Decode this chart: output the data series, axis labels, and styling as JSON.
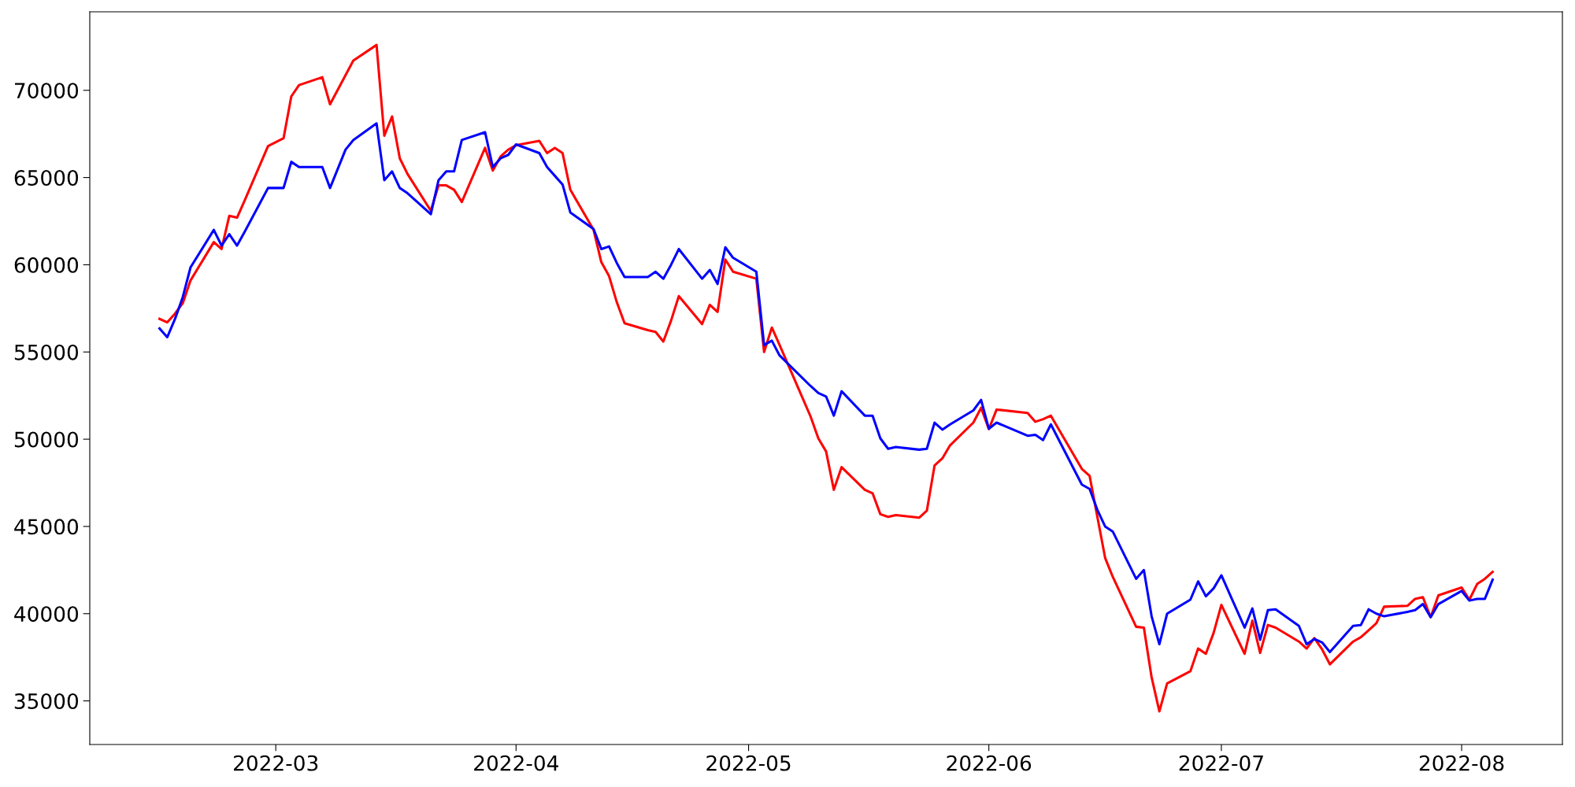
{
  "chart_data": {
    "type": "line",
    "x": [
      "2022-02-14",
      "2022-02-15",
      "2022-02-16",
      "2022-02-17",
      "2022-02-18",
      "2022-02-21",
      "2022-02-22",
      "2022-02-23",
      "2022-02-24",
      "2022-02-25",
      "2022-02-28",
      "2022-03-02",
      "2022-03-03",
      "2022-03-04",
      "2022-03-07",
      "2022-03-08",
      "2022-03-10",
      "2022-03-11",
      "2022-03-14",
      "2022-03-15",
      "2022-03-16",
      "2022-03-17",
      "2022-03-18",
      "2022-03-21",
      "2022-03-22",
      "2022-03-23",
      "2022-03-24",
      "2022-03-25",
      "2022-03-28",
      "2022-03-29",
      "2022-03-30",
      "2022-03-31",
      "2022-04-01",
      "2022-04-04",
      "2022-04-05",
      "2022-04-06",
      "2022-04-07",
      "2022-04-08",
      "2022-04-11",
      "2022-04-12",
      "2022-04-13",
      "2022-04-14",
      "2022-04-15",
      "2022-04-18",
      "2022-04-19",
      "2022-04-20",
      "2022-04-21",
      "2022-04-22",
      "2022-04-25",
      "2022-04-26",
      "2022-04-27",
      "2022-04-28",
      "2022-04-29",
      "2022-05-02",
      "2022-05-03",
      "2022-05-04",
      "2022-05-05",
      "2022-05-09",
      "2022-05-10",
      "2022-05-11",
      "2022-05-12",
      "2022-05-13",
      "2022-05-16",
      "2022-05-17",
      "2022-05-18",
      "2022-05-19",
      "2022-05-20",
      "2022-05-23",
      "2022-05-24",
      "2022-05-25",
      "2022-05-26",
      "2022-05-27",
      "2022-05-30",
      "2022-05-31",
      "2022-06-01",
      "2022-06-02",
      "2022-06-06",
      "2022-06-07",
      "2022-06-08",
      "2022-06-09",
      "2022-06-13",
      "2022-06-14",
      "2022-06-15",
      "2022-06-16",
      "2022-06-17",
      "2022-06-20",
      "2022-06-21",
      "2022-06-22",
      "2022-06-23",
      "2022-06-24",
      "2022-06-27",
      "2022-06-28",
      "2022-06-29",
      "2022-06-30",
      "2022-07-01",
      "2022-07-04",
      "2022-07-05",
      "2022-07-06",
      "2022-07-07",
      "2022-07-08",
      "2022-07-11",
      "2022-07-12",
      "2022-07-13",
      "2022-07-14",
      "2022-07-15",
      "2022-07-18",
      "2022-07-19",
      "2022-07-20",
      "2022-07-21",
      "2022-07-22",
      "2022-07-25",
      "2022-07-26",
      "2022-07-27",
      "2022-07-28",
      "2022-07-29",
      "2022-08-01",
      "2022-08-02",
      "2022-08-03",
      "2022-08-04",
      "2022-08-05"
    ],
    "series": [
      {
        "color": "#ff0000",
        "values": [
          56900,
          56700,
          57200,
          57800,
          59100,
          61300,
          60900,
          62800,
          62700,
          63700,
          66800,
          67250,
          69650,
          70300,
          70750,
          69200,
          70870,
          71700,
          72600,
          67400,
          68500,
          66100,
          65200,
          63100,
          64550,
          64550,
          64300,
          63600,
          66700,
          65400,
          66200,
          66600,
          66850,
          67100,
          66400,
          66700,
          66400,
          64300,
          62000,
          60150,
          59350,
          57850,
          56650,
          56250,
          56150,
          55600,
          56800,
          58200,
          56600,
          57700,
          57300,
          60300,
          59600,
          59200,
          55000,
          56400,
          55400,
          51300,
          50050,
          49300,
          47100,
          48400,
          47100,
          46900,
          45700,
          45550,
          45650,
          45500,
          45900,
          48500,
          48900,
          49650,
          50950,
          51800,
          50580,
          51700,
          51500,
          51000,
          51150,
          51350,
          48300,
          47900,
          45550,
          43200,
          42100,
          39250,
          39200,
          36350,
          34400,
          36000,
          36700,
          38000,
          37700,
          38900,
          40500,
          37700,
          39600,
          37750,
          39350,
          39200,
          38400,
          38000,
          38600,
          37950,
          37100,
          38400,
          38650,
          39050,
          39450,
          40400,
          40450,
          40850,
          40950,
          39800,
          41050,
          41500,
          40800,
          41700,
          42000,
          42400
        ]
      },
      {
        "color": "#0000ff",
        "values": [
          56350,
          55850,
          56900,
          58150,
          59850,
          62000,
          61100,
          61750,
          61100,
          61900,
          64400,
          64400,
          65900,
          65600,
          65600,
          64400,
          66600,
          67150,
          68100,
          64850,
          65350,
          64400,
          64100,
          62900,
          64850,
          65350,
          65350,
          67150,
          67600,
          65600,
          66100,
          66300,
          66900,
          66400,
          65600,
          65100,
          64600,
          63000,
          62050,
          60900,
          61050,
          60100,
          59300,
          59300,
          59600,
          59200,
          60000,
          60900,
          59200,
          59700,
          58900,
          61000,
          60400,
          59600,
          55400,
          55650,
          54800,
          53050,
          52650,
          52450,
          51350,
          52750,
          51350,
          51350,
          50050,
          49450,
          49550,
          49400,
          49450,
          50950,
          50550,
          50850,
          51650,
          52250,
          50600,
          50950,
          50200,
          50250,
          49950,
          50850,
          47400,
          47150,
          45950,
          45000,
          44700,
          42000,
          42500,
          39850,
          38250,
          40000,
          40800,
          41850,
          41000,
          41450,
          42200,
          39200,
          40300,
          38500,
          40200,
          40250,
          39300,
          38250,
          38550,
          38350,
          37800,
          39300,
          39350,
          40250,
          40000,
          39850,
          40100,
          40200,
          40550,
          39800,
          40550,
          41300,
          40750,
          40850,
          40850,
          41950
        ]
      }
    ],
    "xlim": [
      "2022-02-05",
      "2022-08-14"
    ],
    "xticks": [
      {
        "value": "2022-03-01",
        "label": "2022-03"
      },
      {
        "value": "2022-04-01",
        "label": "2022-04"
      },
      {
        "value": "2022-05-01",
        "label": "2022-05"
      },
      {
        "value": "2022-06-01",
        "label": "2022-06"
      },
      {
        "value": "2022-07-01",
        "label": "2022-07"
      },
      {
        "value": "2022-08-01",
        "label": "2022-08"
      }
    ],
    "ylim": [
      32500,
      74500
    ],
    "yticks": [
      35000,
      40000,
      45000,
      50000,
      55000,
      60000,
      65000,
      70000
    ],
    "grid": false,
    "marker": "none",
    "line_style": "solid"
  }
}
